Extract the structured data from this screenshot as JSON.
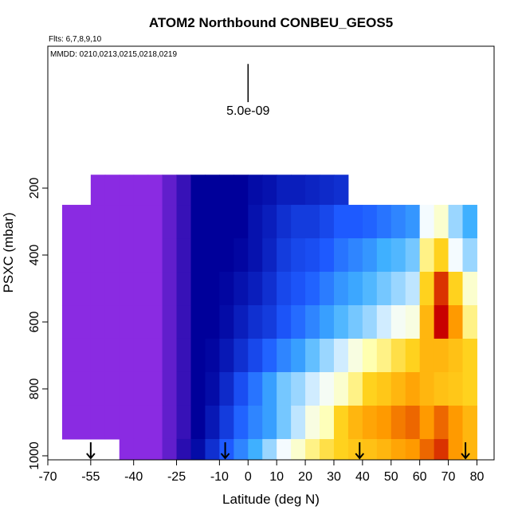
{
  "chart_data": {
    "type": "heatmap",
    "title": "ATOM2 Northbound CONBEU_GEOS5",
    "subtitle": "Flts: 6,7,8,9,10",
    "annotation": "MMDD: 0210,0213,0215,0218,0219",
    "x_label": "Latitude (deg N)",
    "y_label": "PSXC (mbar)",
    "xlim": [
      -70,
      86
    ],
    "ylim": [
      1012,
      -224
    ],
    "xticks": [
      -70,
      -55,
      -40,
      -25,
      -10,
      0,
      10,
      20,
      30,
      40,
      50,
      60,
      70,
      80
    ],
    "yticks": [
      200,
      400,
      600,
      800,
      1000
    ],
    "xbins": [
      -65,
      -55,
      -50,
      -45,
      -40,
      -35,
      -30,
      -25,
      -20,
      -15,
      -10,
      -5,
      0,
      5,
      10,
      15,
      20,
      25,
      30,
      35,
      40,
      45,
      50,
      55,
      60,
      65,
      70,
      75,
      80
    ],
    "ybins": [
      160,
      250,
      350,
      450,
      550,
      650,
      750,
      850,
      950,
      1012
    ],
    "z": [
      [
        null,
        1,
        1,
        1,
        1,
        1,
        1.3,
        1.6,
        2,
        2,
        2,
        2,
        2.2,
        2.3,
        2.5,
        2.5,
        2.6,
        2.7,
        2.8,
        null,
        null,
        null,
        null,
        null,
        null,
        null,
        null,
        null
      ],
      [
        1,
        1,
        1,
        1,
        1,
        1,
        1.3,
        1.6,
        2,
        2,
        2,
        2,
        2.3,
        2.5,
        2.8,
        3,
        3,
        3.2,
        3.5,
        3.5,
        3.6,
        3.8,
        4,
        4.2,
        5.5,
        6,
        5,
        4.5
      ],
      [
        1,
        1,
        1,
        1,
        1,
        1,
        1.3,
        1.6,
        2,
        2,
        2,
        2.1,
        2.3,
        2.6,
        3,
        3.2,
        3.3,
        3.5,
        3.8,
        4,
        4.2,
        4.5,
        4.6,
        4.8,
        6.5,
        7,
        5.5,
        5
      ],
      [
        1,
        1,
        1,
        1,
        1,
        1,
        1.3,
        1.6,
        2,
        2,
        2.1,
        2.3,
        2.5,
        2.8,
        3.2,
        3.4,
        3.6,
        3.9,
        4.2,
        4.4,
        4.6,
        4.8,
        5,
        5.2,
        7,
        9,
        7,
        6
      ],
      [
        1,
        1,
        1,
        1,
        1,
        1,
        1.3,
        1.6,
        2,
        2,
        2.2,
        2.5,
        2.8,
        3,
        3.4,
        3.7,
        4,
        4.3,
        4.6,
        4.8,
        5,
        5.3,
        5.6,
        5.8,
        7.5,
        9.5,
        8,
        6.5
      ],
      [
        1,
        1,
        1,
        1,
        1,
        1,
        1.3,
        1.6,
        2,
        2.1,
        2.4,
        2.8,
        3.2,
        3.6,
        4,
        4.3,
        4.7,
        5,
        5.3,
        5.8,
        6.3,
        6.5,
        6.8,
        7,
        7.5,
        7.5,
        7.3,
        7
      ],
      [
        1,
        1,
        1,
        1,
        1,
        1,
        1.3,
        1.6,
        2,
        2.2,
        2.7,
        3.3,
        3.8,
        4.3,
        4.8,
        5,
        5.3,
        5.6,
        6,
        6.5,
        7,
        7.2,
        7.5,
        7.8,
        7.5,
        7.3,
        7.2,
        7
      ],
      [
        1,
        1,
        1,
        1,
        1,
        1,
        1.3,
        1.6,
        2,
        2.4,
        3,
        3.6,
        4,
        4.3,
        4.8,
        5.2,
        5.8,
        6.2,
        7,
        7.5,
        7.8,
        8,
        8.3,
        8.5,
        8,
        8.5,
        8,
        7.5
      ],
      [
        null,
        null,
        null,
        1,
        1,
        1,
        1.3,
        1.7,
        2.2,
        2.8,
        3.5,
        4,
        4.5,
        5,
        5.5,
        6,
        6.5,
        6.8,
        7,
        7.2,
        7.3,
        7.5,
        7.8,
        8,
        8.5,
        9,
        8,
        7.5
      ]
    ],
    "colormap": [
      [
        1,
        "#8a2be2"
      ],
      [
        2,
        "#00009a"
      ],
      [
        3.5,
        "#1e5aff"
      ],
      [
        4.5,
        "#3fb0ff"
      ],
      [
        5.5,
        "#f4fbff"
      ],
      [
        6.3,
        "#ffffb0"
      ],
      [
        7,
        "#ffd21e"
      ],
      [
        8,
        "#ff9a00"
      ],
      [
        9.5,
        "#c80000"
      ]
    ],
    "arrows_x": [
      -55,
      -8,
      39,
      76
    ],
    "scale_bar": {
      "label": "5.0e-09",
      "x": 0,
      "y": [
        -171,
        -57
      ]
    }
  }
}
